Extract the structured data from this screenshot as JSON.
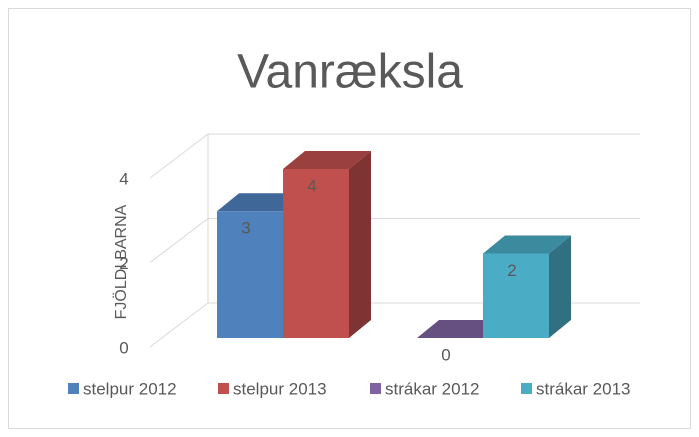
{
  "chart_data": {
    "type": "bar3d",
    "title": "Vanræksla",
    "y_label": "FJÖLDI BARNA",
    "categories": [
      null,
      null
    ],
    "series": [
      {
        "name": "stelpur 2012",
        "color": "#4f81bd",
        "values": [
          3,
          null
        ]
      },
      {
        "name": "stelpur 2013",
        "color": "#c0504d",
        "values": [
          4,
          null
        ]
      },
      {
        "name": "strákar 2012",
        "color": "#8064a2",
        "values": [
          null,
          0
        ]
      },
      {
        "name": "strákar 2013",
        "color": "#4bacc6",
        "values": [
          null,
          2
        ]
      }
    ],
    "ylim": [
      0,
      4
    ],
    "yticks": [
      0,
      2,
      4
    ],
    "grid": true,
    "legend": "bottom"
  }
}
